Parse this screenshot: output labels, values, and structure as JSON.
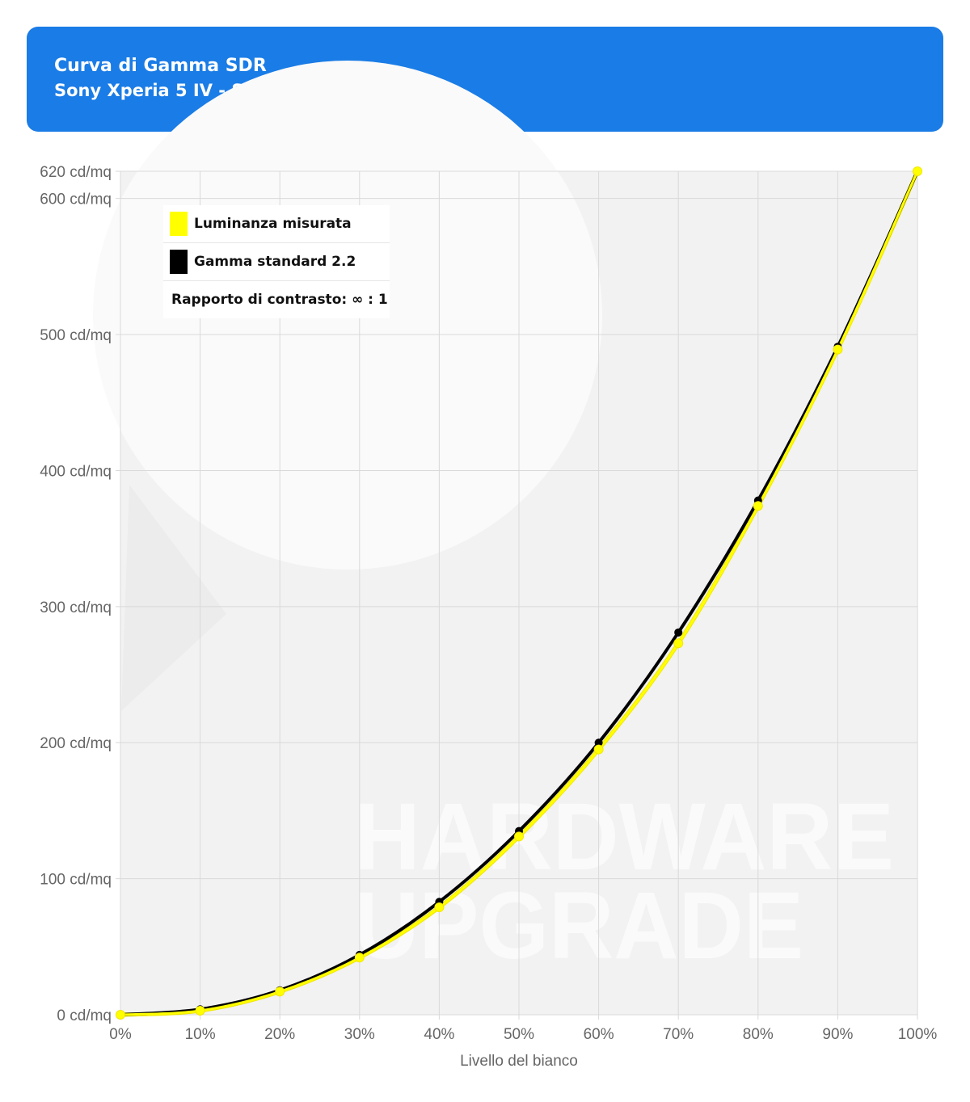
{
  "header": {
    "title": "Curva di Gamma SDR",
    "subtitle": "Sony Xperia 5 IV - Standard"
  },
  "watermark": {
    "line1": "HARDWARE",
    "line2": "UPGRADE"
  },
  "legend": {
    "measured_label": "Luminanza misurata",
    "gamma_label": "Gamma standard 2.2",
    "contrast_text": "Rapporto di contrasto: ∞ : 1"
  },
  "colors": {
    "header_bg": "#1a7ce6",
    "measured": "#ffff00",
    "measured_stroke": "#f2e600",
    "gamma": "#000000",
    "plot_bg": "#f2f2f2",
    "grid": "#d9d9d9",
    "tick_text": "#666666"
  },
  "chart_data": {
    "type": "line",
    "xlabel": "Livello del bianco",
    "ylabel": "",
    "x": [
      0,
      10,
      20,
      30,
      40,
      50,
      60,
      70,
      80,
      90,
      100
    ],
    "x_tick_labels": [
      "0%",
      "10%",
      "20%",
      "30%",
      "40%",
      "50%",
      "60%",
      "70%",
      "80%",
      "90%",
      "100%"
    ],
    "y_ticks": [
      0,
      100,
      200,
      300,
      400,
      500,
      600,
      620
    ],
    "y_tick_labels": [
      "0 cd/mq",
      "100 cd/mq",
      "200 cd/mq",
      "300 cd/mq",
      "400 cd/mq",
      "500 cd/mq",
      "600 cd/mq",
      "620 cd/mq"
    ],
    "xlim": [
      0,
      100
    ],
    "ylim": [
      0,
      620
    ],
    "grid": true,
    "legend_position": "top-left",
    "series": [
      {
        "name": "Luminanza misurata",
        "color": "#ffff00",
        "values": [
          0,
          3,
          17,
          42,
          79,
          131,
          195,
          273,
          374,
          489,
          620
        ]
      },
      {
        "name": "Gamma standard 2.2",
        "color": "#000000",
        "values": [
          0,
          4,
          18,
          44,
          83,
          135,
          200,
          281,
          378,
          491,
          620
        ]
      }
    ]
  }
}
